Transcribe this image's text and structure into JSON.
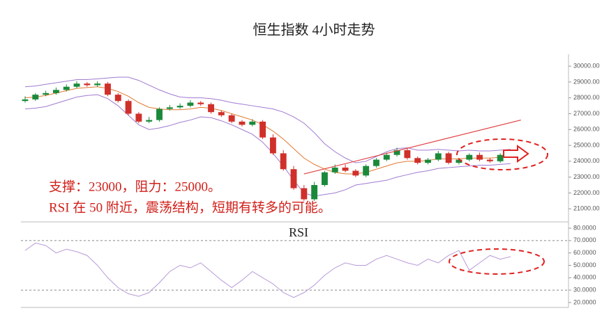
{
  "chart_data": [
    {
      "type": "candlestick",
      "title": "恒生指数 4小时走势",
      "annotations": [
        "支撑：23000，阻力：25000。",
        "RSI 在 50 附近，震荡结构，短期有转多的可能。"
      ],
      "up_color": "#1a8a3a",
      "down_color": "#d0302a",
      "open": [
        27800,
        27900,
        28200,
        28300,
        28500,
        28700,
        28900,
        28800,
        28900,
        28200,
        27800,
        27000,
        26500,
        26600,
        27300,
        27400,
        27500,
        27700,
        27600,
        27100,
        26900,
        26500,
        26300,
        26500,
        25500,
        24500,
        23500,
        22300,
        21600,
        22500,
        23300,
        23600,
        23400,
        23100,
        23700,
        24100,
        24400,
        24700,
        24200,
        23900,
        24100,
        24500,
        23900,
        24100,
        24400,
        24100,
        24000,
        24400
      ],
      "high": [
        28100,
        28300,
        28450,
        28650,
        28850,
        29050,
        29000,
        29050,
        29000,
        28300,
        27900,
        27100,
        26800,
        27400,
        27550,
        27650,
        27850,
        27800,
        27700,
        27200,
        27000,
        26600,
        26650,
        26600,
        25700,
        24700,
        23700,
        22500,
        22700,
        23400,
        23800,
        23800,
        23500,
        23800,
        24200,
        24550,
        24850,
        24800,
        24300,
        24200,
        24650,
        24600,
        24200,
        24500,
        24550,
        24200,
        24500,
        24650
      ],
      "low": [
        27700,
        27800,
        28100,
        28200,
        28400,
        28600,
        28700,
        28700,
        28100,
        27700,
        26900,
        26400,
        26400,
        26500,
        27200,
        27300,
        27400,
        27500,
        27000,
        26800,
        26400,
        26200,
        26200,
        25400,
        24400,
        23400,
        22200,
        21500,
        21500,
        22400,
        23200,
        23300,
        23000,
        23000,
        23600,
        24000,
        24300,
        24100,
        23800,
        23800,
        24000,
        23800,
        23800,
        24000,
        24000,
        23900,
        23900,
        24300
      ],
      "close": [
        27900,
        28200,
        28300,
        28500,
        28700,
        28900,
        28800,
        28900,
        28200,
        27800,
        27000,
        26500,
        26600,
        27300,
        27400,
        27500,
        27700,
        27600,
        27100,
        26900,
        26500,
        26300,
        26500,
        25500,
        24500,
        23500,
        22300,
        21600,
        22500,
        23300,
        23600,
        23400,
        23100,
        23700,
        24100,
        24400,
        24700,
        24200,
        23900,
        24100,
        24500,
        23900,
        24100,
        24400,
        24100,
        24000,
        24400,
        24500
      ],
      "series": [
        {
          "color": "#a07ad0",
          "values": [
            28700,
            28750,
            28850,
            28950,
            29050,
            29150,
            29150,
            29200,
            29250,
            29300,
            29300,
            29100,
            28800,
            28500,
            28250,
            28050,
            28000,
            28000,
            27950,
            27850,
            27700,
            27600,
            27500,
            27400,
            27300,
            27100,
            26800,
            26400,
            25800,
            25100,
            24600,
            24200,
            23900,
            24000,
            24300,
            24600,
            24800,
            24850,
            24700,
            24700,
            24750,
            24700,
            24650,
            24700,
            24650,
            24650,
            24700,
            24750
          ]
        },
        {
          "color": "#e07a30",
          "values": [
            28000,
            28050,
            28150,
            28300,
            28450,
            28600,
            28650,
            28700,
            28600,
            28400,
            28100,
            27700,
            27400,
            27300,
            27250,
            27250,
            27300,
            27400,
            27350,
            27200,
            27000,
            26800,
            26600,
            26300,
            25900,
            25400,
            24800,
            24200,
            23800,
            23500,
            23300,
            23200,
            23200,
            23300,
            23500,
            23700,
            23900,
            24000,
            24000,
            24050,
            24150,
            24150,
            24150,
            24200,
            24200,
            24200,
            24250,
            24300
          ]
        },
        {
          "color": "#a07ad0",
          "values": [
            27300,
            27350,
            27450,
            27650,
            27850,
            28050,
            28150,
            28200,
            27950,
            27500,
            26900,
            26300,
            26000,
            26100,
            26250,
            26450,
            26600,
            26800,
            26750,
            26550,
            26300,
            26000,
            25700,
            25200,
            24500,
            23700,
            22800,
            22000,
            21800,
            21900,
            22000,
            22200,
            22500,
            22600,
            22700,
            22800,
            23000,
            23150,
            23300,
            23400,
            23550,
            23600,
            23650,
            23700,
            23750,
            23750,
            23800,
            23850
          ]
        }
      ],
      "trendline": {
        "color": "#e04040",
        "x": [
          27,
          48
        ],
        "y": [
          23200,
          26600
        ]
      },
      "ylim": [
        20350,
        30750
      ],
      "yticks": [
        {
          "value": 21000,
          "label": "21000.00"
        },
        {
          "value": 22000,
          "label": "22000.00"
        },
        {
          "value": 23000,
          "label": "23000.00"
        },
        {
          "value": 24000,
          "label": "24000.00"
        },
        {
          "value": 25000,
          "label": "25000.00"
        },
        {
          "value": 26000,
          "label": "26000.00"
        },
        {
          "value": 27000,
          "label": "27000.00"
        },
        {
          "value": 28000,
          "label": "28000.00"
        },
        {
          "value": 29000,
          "label": "29000.00"
        },
        {
          "value": 30000,
          "label": "30000.00"
        }
      ]
    },
    {
      "type": "line",
      "title": "RSI",
      "color": "#b89ad8",
      "values": [
        62,
        68,
        66,
        60,
        63,
        61,
        58,
        50,
        40,
        32,
        27,
        25,
        28,
        36,
        45,
        50,
        48,
        52,
        45,
        38,
        32,
        38,
        45,
        40,
        35,
        28,
        24,
        28,
        34,
        42,
        48,
        52,
        50,
        50,
        55,
        58,
        55,
        52,
        50,
        55,
        52,
        58,
        62,
        46,
        52,
        58,
        55,
        57
      ],
      "reference_lines": [
        70,
        30
      ],
      "ylim": [
        16,
        83.4
      ],
      "yticks": [
        {
          "value": 20,
          "label": "20.0000"
        },
        {
          "value": 30,
          "label": "30.0000"
        },
        {
          "value": 40,
          "label": "40.0000"
        },
        {
          "value": 50,
          "label": "50.0000"
        },
        {
          "value": 60,
          "label": "60.0000"
        },
        {
          "value": 70,
          "label": "70.0000"
        },
        {
          "value": 80,
          "label": "80.0000"
        }
      ]
    }
  ]
}
